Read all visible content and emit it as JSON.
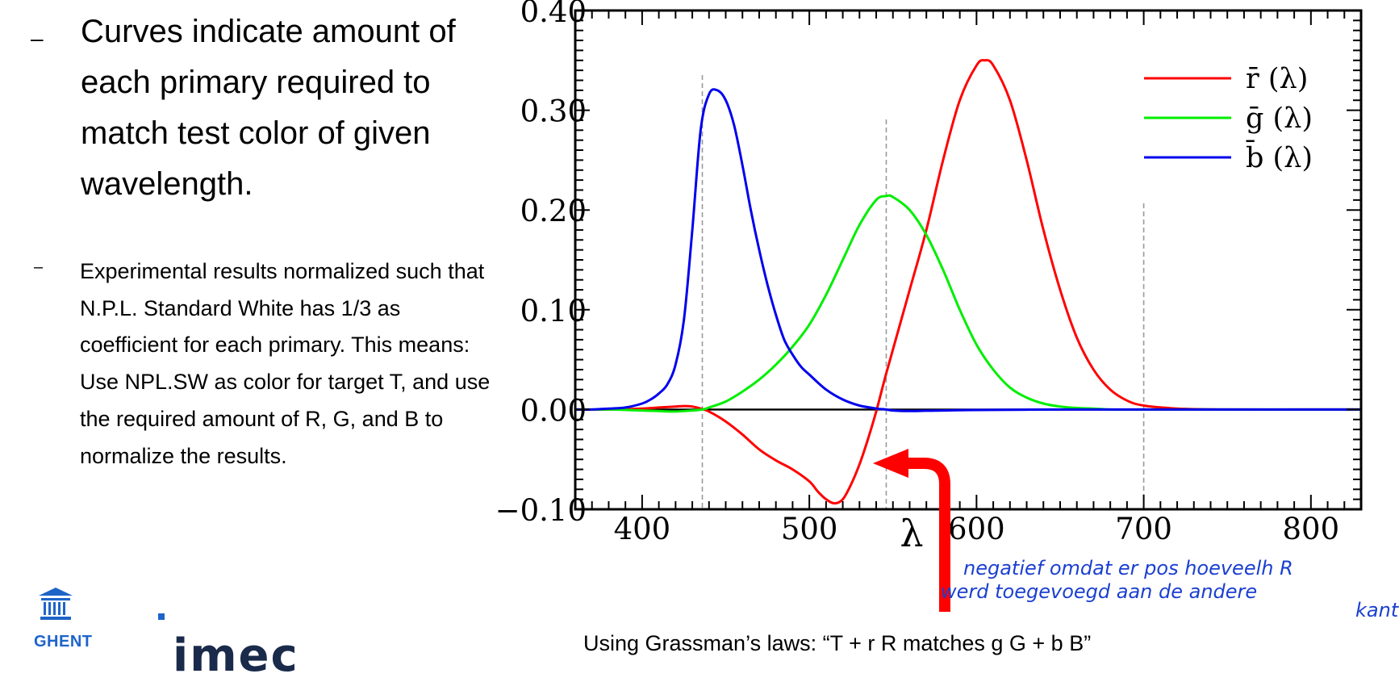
{
  "bullets": [
    {
      "dash": "–",
      "text": "Curves indicate amount of each primary required to match test color of given wavelength."
    },
    {
      "dash": "–",
      "text": "Experimental results normalized such that N.P.L. Standard White has 1/3 as coefficient for each primary. This means: Use NPL.SW as color for target T, and use the required amount of R, G, and B to normalize the results."
    }
  ],
  "footer": "Using Grassman’s laws: “T + r R matches g G + b B”",
  "logos": {
    "ghent": "GHENT",
    "imec": "imec"
  },
  "annotation": {
    "handwritten": [
      "negatief omdat er pos hoeveelh R",
      "werd toegevoegd aan de andere",
      "kant"
    ]
  },
  "chart_data": {
    "type": "line",
    "xlabel": "λ",
    "ylabel": "",
    "xlim": [
      360,
      830
    ],
    "ylim": [
      -0.1,
      0.4
    ],
    "xticks": [
      400,
      500,
      600,
      700,
      800
    ],
    "yticks": [
      -0.1,
      0.0,
      0.1,
      0.2,
      0.3,
      0.4
    ],
    "ytick_labels": [
      "−0.10",
      "0.00",
      "0.10",
      "0.20",
      "0.30",
      "0.40"
    ],
    "legend_position": "top-right",
    "grid": false,
    "reference_lines": [
      436,
      546,
      700
    ],
    "series": [
      {
        "name": "r̄ (λ)",
        "color": "#ff0000",
        "x": [
          360,
          380,
          400,
          410,
          420,
          425,
          430,
          435,
          440,
          450,
          460,
          470,
          480,
          490,
          500,
          505,
          510,
          515,
          520,
          525,
          530,
          535,
          540,
          545,
          550,
          560,
          570,
          580,
          590,
          600,
          605,
          610,
          620,
          630,
          640,
          650,
          660,
          670,
          680,
          690,
          700,
          720,
          750,
          800,
          830
        ],
        "y": [
          0.0,
          0.0,
          0.001,
          0.002,
          0.003,
          0.0035,
          0.003,
          0.001,
          -0.002,
          -0.012,
          -0.025,
          -0.04,
          -0.051,
          -0.06,
          -0.072,
          -0.082,
          -0.09,
          -0.094,
          -0.09,
          -0.075,
          -0.055,
          -0.03,
          -0.002,
          0.03,
          0.06,
          0.12,
          0.18,
          0.25,
          0.31,
          0.345,
          0.35,
          0.345,
          0.31,
          0.25,
          0.18,
          0.12,
          0.072,
          0.04,
          0.02,
          0.009,
          0.004,
          0.001,
          0.0,
          0.0,
          0.0
        ]
      },
      {
        "name": "ḡ (λ)",
        "color": "#00ee00",
        "x": [
          360,
          380,
          400,
          410,
          420,
          430,
          436,
          440,
          450,
          460,
          470,
          480,
          490,
          500,
          510,
          520,
          530,
          540,
          546,
          550,
          560,
          570,
          580,
          590,
          600,
          610,
          620,
          630,
          640,
          650,
          660,
          670,
          680,
          700,
          750,
          830
        ],
        "y": [
          0.0,
          0.0,
          -0.001,
          -0.0015,
          -0.002,
          -0.001,
          0.0,
          0.002,
          0.008,
          0.018,
          0.03,
          0.045,
          0.063,
          0.085,
          0.115,
          0.15,
          0.185,
          0.21,
          0.214,
          0.213,
          0.2,
          0.175,
          0.14,
          0.1,
          0.065,
          0.04,
          0.022,
          0.012,
          0.006,
          0.003,
          0.0015,
          0.001,
          0.0,
          0.0,
          0.0,
          0.0
        ]
      },
      {
        "name": "b̄ (λ)",
        "color": "#0000ee",
        "x": [
          360,
          370,
          380,
          390,
          400,
          405,
          410,
          415,
          420,
          425,
          430,
          435,
          440,
          445,
          450,
          455,
          460,
          465,
          470,
          475,
          480,
          485,
          490,
          495,
          500,
          510,
          520,
          530,
          540,
          546,
          550,
          560,
          570,
          580,
          600,
          650,
          700,
          830
        ],
        "y": [
          0.0,
          0.0,
          0.001,
          0.002,
          0.006,
          0.01,
          0.016,
          0.025,
          0.045,
          0.09,
          0.18,
          0.28,
          0.316,
          0.32,
          0.31,
          0.285,
          0.245,
          0.2,
          0.16,
          0.125,
          0.095,
          0.07,
          0.055,
          0.043,
          0.035,
          0.02,
          0.01,
          0.004,
          0.001,
          0.0,
          -0.001,
          -0.0015,
          -0.0012,
          -0.001,
          -0.0005,
          0.0,
          0.0,
          0.0
        ]
      }
    ]
  }
}
